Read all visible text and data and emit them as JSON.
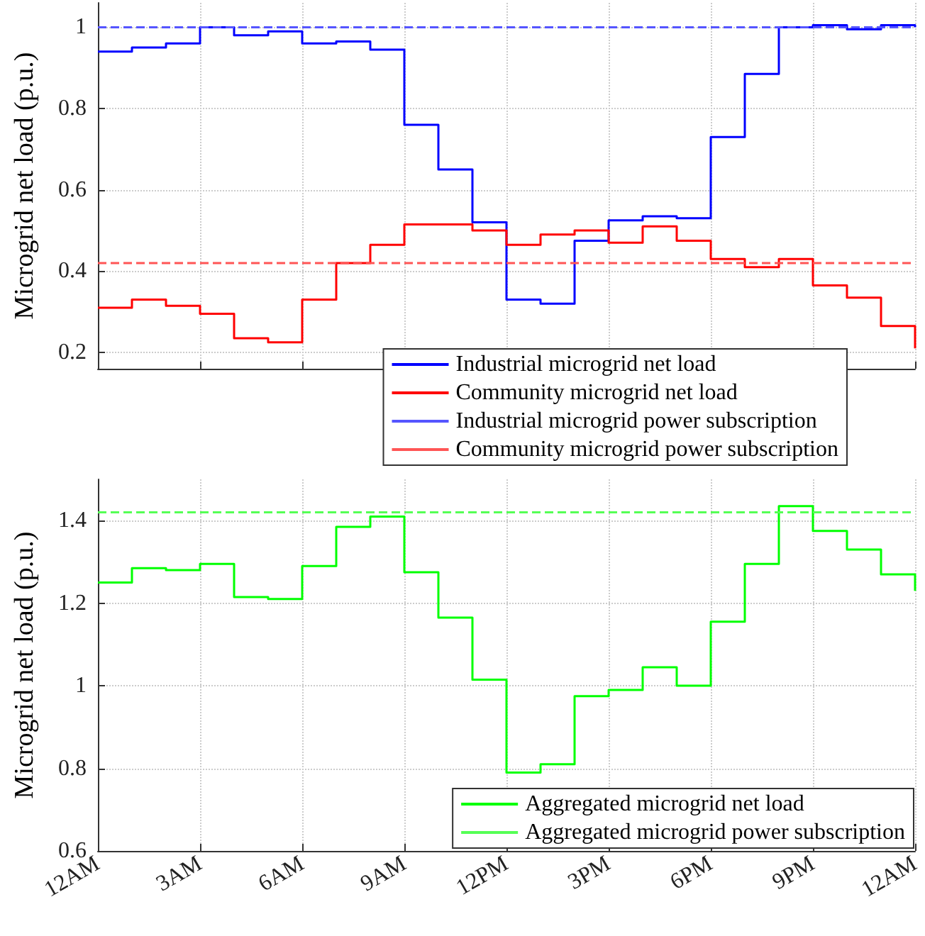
{
  "chart_data": [
    {
      "type": "step",
      "ylabel": "Microgrid net load (p.u.)",
      "categories": [
        null,
        null,
        null,
        null,
        null,
        null,
        null,
        null,
        null,
        null,
        null,
        null,
        null,
        null,
        null,
        null,
        null,
        null,
        null,
        null,
        null,
        null,
        null,
        null,
        null
      ],
      "ylim": [
        0.16,
        1.06
      ],
      "yticks": [
        {
          "value": 0.2,
          "label": "0.2"
        },
        {
          "value": 0.4,
          "label": "0.4"
        },
        {
          "value": 0.6,
          "label": "0.6"
        },
        {
          "value": 0.8,
          "label": "0.8"
        },
        {
          "value": 1,
          "label": "1"
        }
      ],
      "tick_labels": "y",
      "grid": true,
      "legend": "bottom right",
      "series": [
        {
          "name": "Industrial microgrid net load",
          "color": "#0000ff",
          "values": [
            0.94,
            0.95,
            0.96,
            1.0,
            0.98,
            0.99,
            0.96,
            0.965,
            0.945,
            0.76,
            0.65,
            0.52,
            0.33,
            0.32,
            0.475,
            0.525,
            0.535,
            0.53,
            0.73,
            0.885,
            1.0,
            1.005,
            0.995,
            1.005,
            1.0
          ]
        },
        {
          "name": "Community microgrid net load",
          "color": "#ff0000",
          "values": [
            0.31,
            0.33,
            0.315,
            0.295,
            0.235,
            0.225,
            0.33,
            0.42,
            0.465,
            0.515,
            0.515,
            0.5,
            0.465,
            0.49,
            0.5,
            0.47,
            0.51,
            0.475,
            0.43,
            0.41,
            0.43,
            0.365,
            0.335,
            0.265,
            0.21
          ]
        },
        {
          "name": "Industrial microgrid power subscription",
          "type": "line",
          "line_style": "dashed",
          "color": "#5555ff",
          "values": [
            1.0,
            1.0,
            1.0,
            1.0,
            1.0,
            1.0,
            1.0,
            1.0,
            1.0,
            1.0,
            1.0,
            1.0,
            1.0,
            1.0,
            1.0,
            1.0,
            1.0,
            1.0,
            1.0,
            1.0,
            1.0,
            1.0,
            1.0,
            1.0,
            1.0
          ]
        },
        {
          "name": "Community microgrid power subscription",
          "type": "line",
          "line_style": "dashed",
          "color": "#ff5555",
          "values": [
            0.42,
            0.42,
            0.42,
            0.42,
            0.42,
            0.42,
            0.42,
            0.42,
            0.42,
            0.42,
            0.42,
            0.42,
            0.42,
            0.42,
            0.42,
            0.42,
            0.42,
            0.42,
            0.42,
            0.42,
            0.42,
            0.42,
            0.42,
            0.42,
            0.42
          ]
        }
      ]
    },
    {
      "type": "step",
      "ylabel": "Microgrid net load (p.u.)",
      "categories": [
        "12AM",
        null,
        null,
        "3AM",
        null,
        null,
        "6AM",
        null,
        null,
        "9AM",
        null,
        null,
        "12PM",
        null,
        null,
        "3PM",
        null,
        null,
        "6PM",
        null,
        null,
        "9PM",
        null,
        null,
        "12AM"
      ],
      "ylim": [
        0.6,
        1.5
      ],
      "yticks": [
        {
          "value": 0.6,
          "label": "0.6"
        },
        {
          "value": 0.8,
          "label": "0.8"
        },
        {
          "value": 1,
          "label": "1"
        },
        {
          "value": 1.2,
          "label": "1.2"
        },
        {
          "value": 1.4,
          "label": "1.4"
        }
      ],
      "grid": true,
      "legend": "bottom right",
      "series": [
        {
          "name": "Aggregated microgrid net load",
          "color": "#00ff00",
          "values": [
            1.25,
            1.285,
            1.28,
            1.295,
            1.215,
            1.21,
            1.29,
            1.385,
            1.41,
            1.275,
            1.165,
            1.015,
            0.79,
            0.81,
            0.975,
            0.99,
            1.045,
            1.0,
            1.155,
            1.295,
            1.435,
            1.375,
            1.33,
            1.27,
            1.23
          ]
        },
        {
          "name": "Aggregated microgrid power subscription",
          "type": "line",
          "line_style": "dashed",
          "color": "#55ff55",
          "values": [
            1.42,
            1.42,
            1.42,
            1.42,
            1.42,
            1.42,
            1.42,
            1.42,
            1.42,
            1.42,
            1.42,
            1.42,
            1.42,
            1.42,
            1.42,
            1.42,
            1.42,
            1.42,
            1.42,
            1.42,
            1.42,
            1.42,
            1.42,
            1.42,
            1.42
          ]
        }
      ]
    }
  ]
}
